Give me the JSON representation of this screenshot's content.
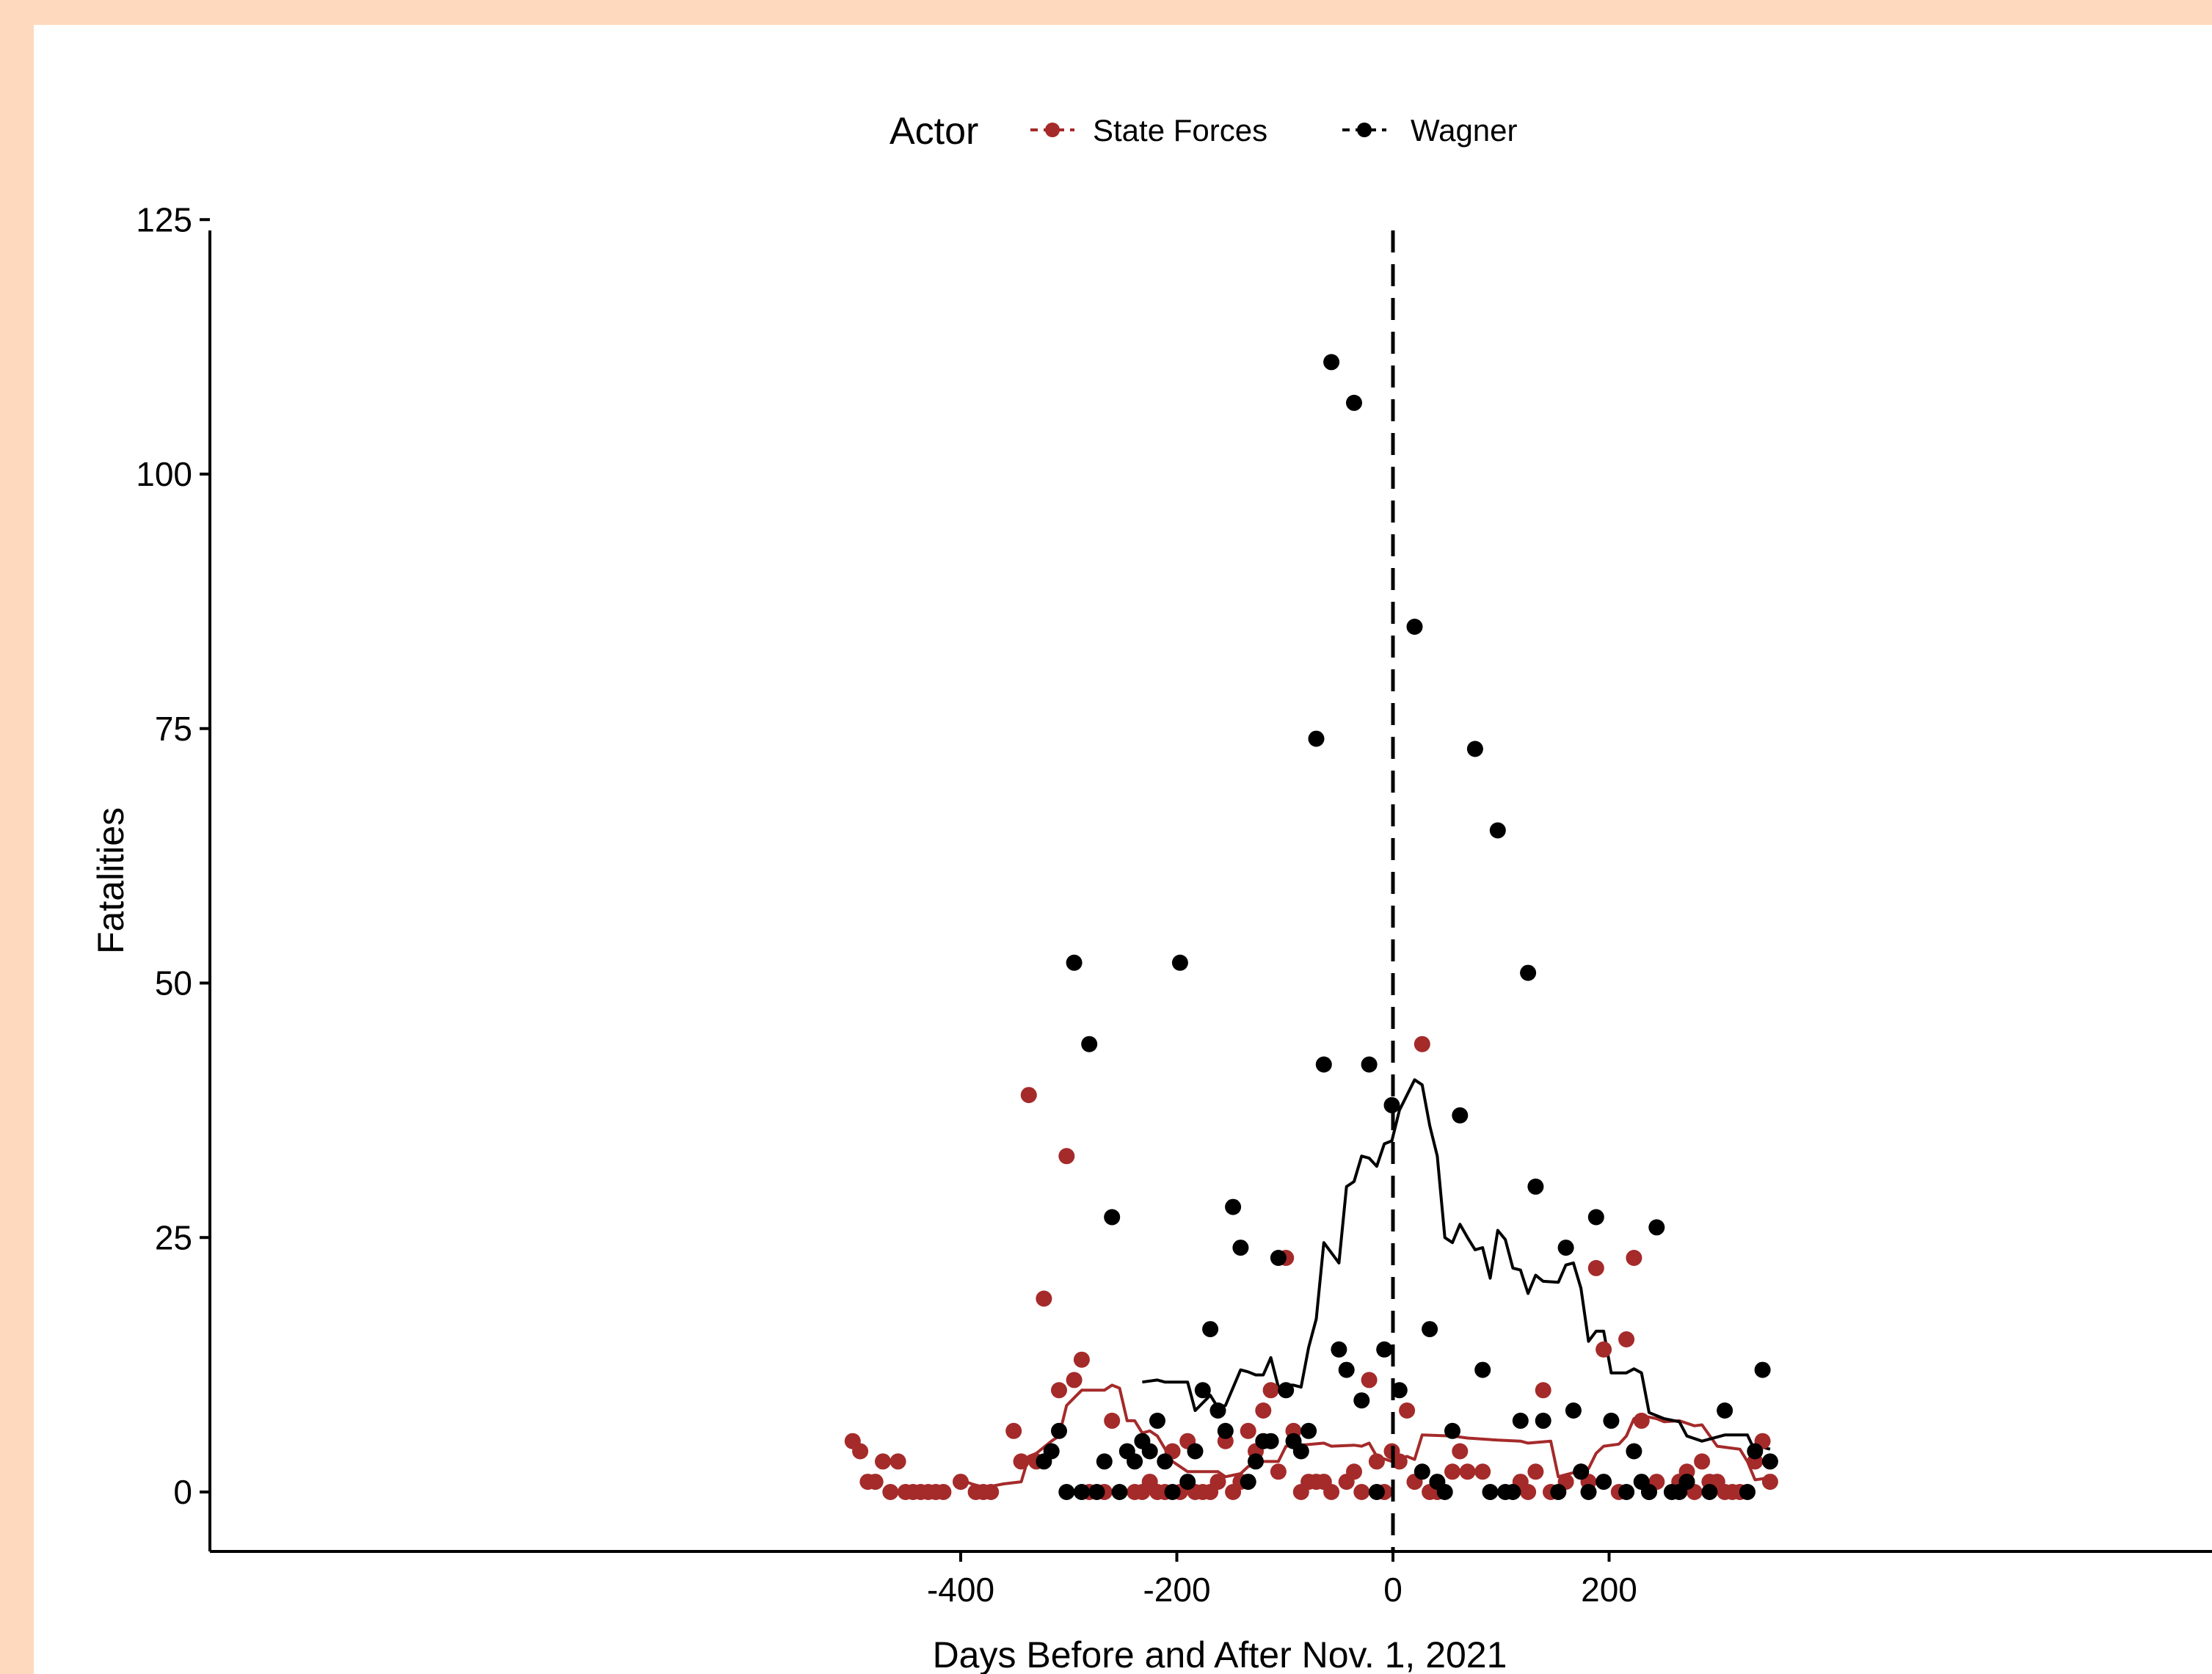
{
  "chart_data": {
    "type": "scatter",
    "title": "",
    "xlabel": "Days Before and After Nov. 1, 2021",
    "ylabel": "Fatalities",
    "xlim": [
      -540,
      380
    ],
    "ylim": [
      -6,
      126
    ],
    "x_ticks": [
      -400,
      -200,
      0,
      200
    ],
    "x_tick_labels": [
      "-400",
      "-200",
      "0",
      "200"
    ],
    "y_ticks": [
      0,
      25,
      50,
      75,
      100,
      125
    ],
    "y_tick_labels": [
      "0",
      "25",
      "50",
      "75",
      "100",
      "125"
    ],
    "vline_x": 0,
    "vline_style": "dashed",
    "legend": {
      "title": "Actor",
      "position": "top"
    },
    "grid": false,
    "series": [
      {
        "name": "State Forces",
        "color": "#a52a2a",
        "points": [
          [
            -500,
            5
          ],
          [
            -493,
            4
          ],
          [
            -486,
            1
          ],
          [
            -479,
            1
          ],
          [
            -472,
            3
          ],
          [
            -465,
            0
          ],
          [
            -458,
            3
          ],
          [
            -451,
            0
          ],
          [
            -444,
            0
          ],
          [
            -437,
            0
          ],
          [
            -430,
            0
          ],
          [
            -423,
            0
          ],
          [
            -416,
            0
          ],
          [
            -400,
            1
          ],
          [
            -386,
            0
          ],
          [
            -379,
            0
          ],
          [
            -372,
            0
          ],
          [
            -351,
            6
          ],
          [
            -344,
            3
          ],
          [
            -337,
            39
          ],
          [
            -330,
            3
          ],
          [
            -323,
            19
          ],
          [
            -309,
            10
          ],
          [
            -302,
            33
          ],
          [
            -295,
            11
          ],
          [
            -288,
            13
          ],
          [
            -281,
            0
          ],
          [
            -267,
            0
          ],
          [
            -260,
            7
          ],
          [
            -239,
            0
          ],
          [
            -232,
            0
          ],
          [
            -225,
            1
          ],
          [
            -218,
            0
          ],
          [
            -211,
            0
          ],
          [
            -204,
            4
          ],
          [
            -197,
            0
          ],
          [
            -190,
            5
          ],
          [
            -183,
            0
          ],
          [
            -176,
            0
          ],
          [
            -169,
            0
          ],
          [
            -162,
            1
          ],
          [
            -155,
            5
          ],
          [
            -148,
            0
          ],
          [
            -141,
            1
          ],
          [
            -134,
            6
          ],
          [
            -127,
            4
          ],
          [
            -120,
            8
          ],
          [
            -113,
            10
          ],
          [
            -106,
            2
          ],
          [
            -99,
            23
          ],
          [
            -92,
            6
          ],
          [
            -85,
            0
          ],
          [
            -78,
            1
          ],
          [
            -71,
            1
          ],
          [
            -64,
            1
          ],
          [
            -57,
            0
          ],
          [
            -43,
            1
          ],
          [
            -36,
            2
          ],
          [
            -29,
            0
          ],
          [
            -22,
            11
          ],
          [
            -15,
            3
          ],
          [
            -8,
            0
          ],
          [
            -1,
            4
          ],
          [
            6,
            3
          ],
          [
            13,
            8
          ],
          [
            20,
            1
          ],
          [
            27,
            44
          ],
          [
            34,
            0
          ],
          [
            41,
            0
          ],
          [
            55,
            2
          ],
          [
            62,
            4
          ],
          [
            69,
            2
          ],
          [
            83,
            2
          ],
          [
            118,
            1
          ],
          [
            125,
            0
          ],
          [
            132,
            2
          ],
          [
            139,
            10
          ],
          [
            146,
            0
          ],
          [
            160,
            1
          ],
          [
            174,
            2
          ],
          [
            181,
            1
          ],
          [
            188,
            22
          ],
          [
            195,
            14
          ],
          [
            209,
            0
          ],
          [
            216,
            15
          ],
          [
            223,
            23
          ],
          [
            230,
            7
          ],
          [
            237,
            0
          ],
          [
            244,
            1
          ],
          [
            265,
            1
          ],
          [
            272,
            2
          ],
          [
            279,
            0
          ],
          [
            286,
            3
          ],
          [
            293,
            1
          ],
          [
            300,
            1
          ],
          [
            307,
            0
          ],
          [
            314,
            0
          ],
          [
            321,
            0
          ],
          [
            335,
            3
          ],
          [
            342,
            5
          ],
          [
            349,
            1
          ]
        ],
        "trend": [
          [
            -400,
            1.2
          ],
          [
            -390,
            0.8
          ],
          [
            -380,
            0.5
          ],
          [
            -370,
            0.6
          ],
          [
            -360,
            0.8
          ],
          [
            -344,
            1.0
          ],
          [
            -337,
            3.5
          ],
          [
            -330,
            3.8
          ],
          [
            -316,
            5.0
          ],
          [
            -309,
            5.5
          ],
          [
            -302,
            8.5
          ],
          [
            -288,
            10.0
          ],
          [
            -267,
            10.0
          ],
          [
            -260,
            10.5
          ],
          [
            -253,
            10.2
          ],
          [
            -246,
            7.0
          ],
          [
            -239,
            7.0
          ],
          [
            -232,
            5.8
          ],
          [
            -225,
            6.0
          ],
          [
            -218,
            5.5
          ],
          [
            -204,
            3.0
          ],
          [
            -190,
            2.0
          ],
          [
            -162,
            2.0
          ],
          [
            -155,
            1.5
          ],
          [
            -141,
            1.8
          ],
          [
            -134,
            2.5
          ],
          [
            -120,
            3.0
          ],
          [
            -106,
            3.0
          ],
          [
            -99,
            4.5
          ],
          [
            -85,
            4.6
          ],
          [
            -64,
            4.8
          ],
          [
            -57,
            4.5
          ],
          [
            -36,
            4.6
          ],
          [
            -29,
            4.5
          ],
          [
            -22,
            4.8
          ],
          [
            -15,
            3.5
          ],
          [
            -1,
            3.0
          ],
          [
            6,
            3.3
          ],
          [
            13,
            3.5
          ],
          [
            20,
            3.2
          ],
          [
            27,
            5.6
          ],
          [
            55,
            5.5
          ],
          [
            69,
            5.3
          ],
          [
            97,
            5.1
          ],
          [
            118,
            5.0
          ],
          [
            125,
            4.8
          ],
          [
            146,
            5.0
          ],
          [
            153,
            1.5
          ],
          [
            160,
            1.7
          ],
          [
            181,
            2.3
          ],
          [
            188,
            3.8
          ],
          [
            195,
            4.5
          ],
          [
            209,
            4.7
          ],
          [
            216,
            5.5
          ],
          [
            223,
            7.2
          ],
          [
            230,
            7.5
          ],
          [
            244,
            7.2
          ],
          [
            251,
            6.9
          ],
          [
            265,
            7.0
          ],
          [
            279,
            6.5
          ],
          [
            286,
            6.6
          ],
          [
            300,
            4.5
          ],
          [
            314,
            4.3
          ],
          [
            321,
            4.2
          ],
          [
            328,
            3.0
          ],
          [
            335,
            1.2
          ],
          [
            342,
            1.3
          ],
          [
            349,
            1.5
          ]
        ]
      },
      {
        "name": "Wagner",
        "color": "#000000",
        "points": [
          [
            -323,
            3
          ],
          [
            -316,
            4
          ],
          [
            -309,
            6
          ],
          [
            -302,
            0
          ],
          [
            -295,
            52
          ],
          [
            -288,
            0
          ],
          [
            -281,
            44
          ],
          [
            -274,
            0
          ],
          [
            -267,
            3
          ],
          [
            -260,
            27
          ],
          [
            -253,
            0
          ],
          [
            -246,
            4
          ],
          [
            -239,
            3
          ],
          [
            -232,
            5
          ],
          [
            -225,
            4
          ],
          [
            -218,
            7
          ],
          [
            -211,
            3
          ],
          [
            -204,
            0
          ],
          [
            -197,
            52
          ],
          [
            -190,
            1
          ],
          [
            -183,
            4
          ],
          [
            -176,
            10
          ],
          [
            -169,
            16
          ],
          [
            -162,
            8
          ],
          [
            -155,
            6
          ],
          [
            -148,
            28
          ],
          [
            -141,
            24
          ],
          [
            -134,
            1
          ],
          [
            -127,
            3
          ],
          [
            -120,
            5
          ],
          [
            -113,
            5
          ],
          [
            -106,
            23
          ],
          [
            -99,
            10
          ],
          [
            -92,
            5
          ],
          [
            -85,
            4
          ],
          [
            -78,
            6
          ],
          [
            -71,
            74
          ],
          [
            -64,
            42
          ],
          [
            -57,
            111
          ],
          [
            -50,
            14
          ],
          [
            -43,
            12
          ],
          [
            -36,
            107
          ],
          [
            -29,
            9
          ],
          [
            -22,
            42
          ],
          [
            -15,
            0
          ],
          [
            -8,
            14
          ],
          [
            -1,
            38
          ],
          [
            6,
            10
          ],
          [
            20,
            85
          ],
          [
            27,
            2
          ],
          [
            34,
            16
          ],
          [
            41,
            1
          ],
          [
            48,
            0
          ],
          [
            55,
            6
          ],
          [
            62,
            37
          ],
          [
            76,
            73
          ],
          [
            83,
            12
          ],
          [
            90,
            0
          ],
          [
            97,
            65
          ],
          [
            104,
            0
          ],
          [
            111,
            0
          ],
          [
            118,
            7
          ],
          [
            125,
            51
          ],
          [
            132,
            30
          ],
          [
            139,
            7
          ],
          [
            153,
            0
          ],
          [
            160,
            24
          ],
          [
            167,
            8
          ],
          [
            174,
            2
          ],
          [
            181,
            0
          ],
          [
            188,
            27
          ],
          [
            195,
            1
          ],
          [
            202,
            7
          ],
          [
            216,
            0
          ],
          [
            223,
            4
          ],
          [
            230,
            1
          ],
          [
            237,
            0
          ],
          [
            244,
            26
          ],
          [
            258,
            0
          ],
          [
            265,
            0
          ],
          [
            272,
            1
          ],
          [
            293,
            0
          ],
          [
            307,
            8
          ],
          [
            328,
            0
          ],
          [
            335,
            4
          ],
          [
            342,
            12
          ],
          [
            349,
            3
          ]
        ],
        "trend": [
          [
            -232,
            10.8
          ],
          [
            -218,
            11.0
          ],
          [
            -211,
            10.8
          ],
          [
            -197,
            10.8
          ],
          [
            -190,
            10.8
          ],
          [
            -183,
            8.0
          ],
          [
            -169,
            9.5
          ],
          [
            -162,
            8.3
          ],
          [
            -155,
            8.5
          ],
          [
            -141,
            12.0
          ],
          [
            -134,
            11.8
          ],
          [
            -127,
            11.5
          ],
          [
            -120,
            11.5
          ],
          [
            -113,
            13.2
          ],
          [
            -106,
            10.3
          ],
          [
            -99,
            10.5
          ],
          [
            -92,
            10.5
          ],
          [
            -85,
            10.3
          ],
          [
            -78,
            14.2
          ],
          [
            -71,
            17.0
          ],
          [
            -64,
            24.5
          ],
          [
            -50,
            22.5
          ],
          [
            -43,
            30.0
          ],
          [
            -36,
            30.5
          ],
          [
            -29,
            33.0
          ],
          [
            -22,
            32.8
          ],
          [
            -15,
            32.0
          ],
          [
            -8,
            34.2
          ],
          [
            -1,
            34.5
          ],
          [
            6,
            37.5
          ],
          [
            20,
            40.5
          ],
          [
            27,
            40.0
          ],
          [
            34,
            36.0
          ],
          [
            41,
            33.0
          ],
          [
            48,
            25.0
          ],
          [
            55,
            24.5
          ],
          [
            62,
            26.3
          ],
          [
            69,
            25.0
          ],
          [
            76,
            23.8
          ],
          [
            83,
            24.0
          ],
          [
            90,
            21.0
          ],
          [
            97,
            25.7
          ],
          [
            104,
            24.8
          ],
          [
            111,
            22.0
          ],
          [
            118,
            21.8
          ],
          [
            125,
            19.5
          ],
          [
            132,
            21.3
          ],
          [
            139,
            20.7
          ],
          [
            153,
            20.6
          ],
          [
            160,
            22.3
          ],
          [
            167,
            22.5
          ],
          [
            174,
            20.0
          ],
          [
            181,
            14.8
          ],
          [
            188,
            15.8
          ],
          [
            195,
            15.8
          ],
          [
            202,
            11.7
          ],
          [
            216,
            11.7
          ],
          [
            223,
            12.1
          ],
          [
            230,
            11.7
          ],
          [
            237,
            7.8
          ],
          [
            244,
            7.5
          ],
          [
            251,
            7.2
          ],
          [
            265,
            6.9
          ],
          [
            272,
            5.5
          ],
          [
            286,
            5.0
          ],
          [
            307,
            5.6
          ],
          [
            328,
            5.6
          ],
          [
            335,
            4.0
          ],
          [
            342,
            4.4
          ],
          [
            349,
            4.2
          ]
        ]
      }
    ]
  }
}
